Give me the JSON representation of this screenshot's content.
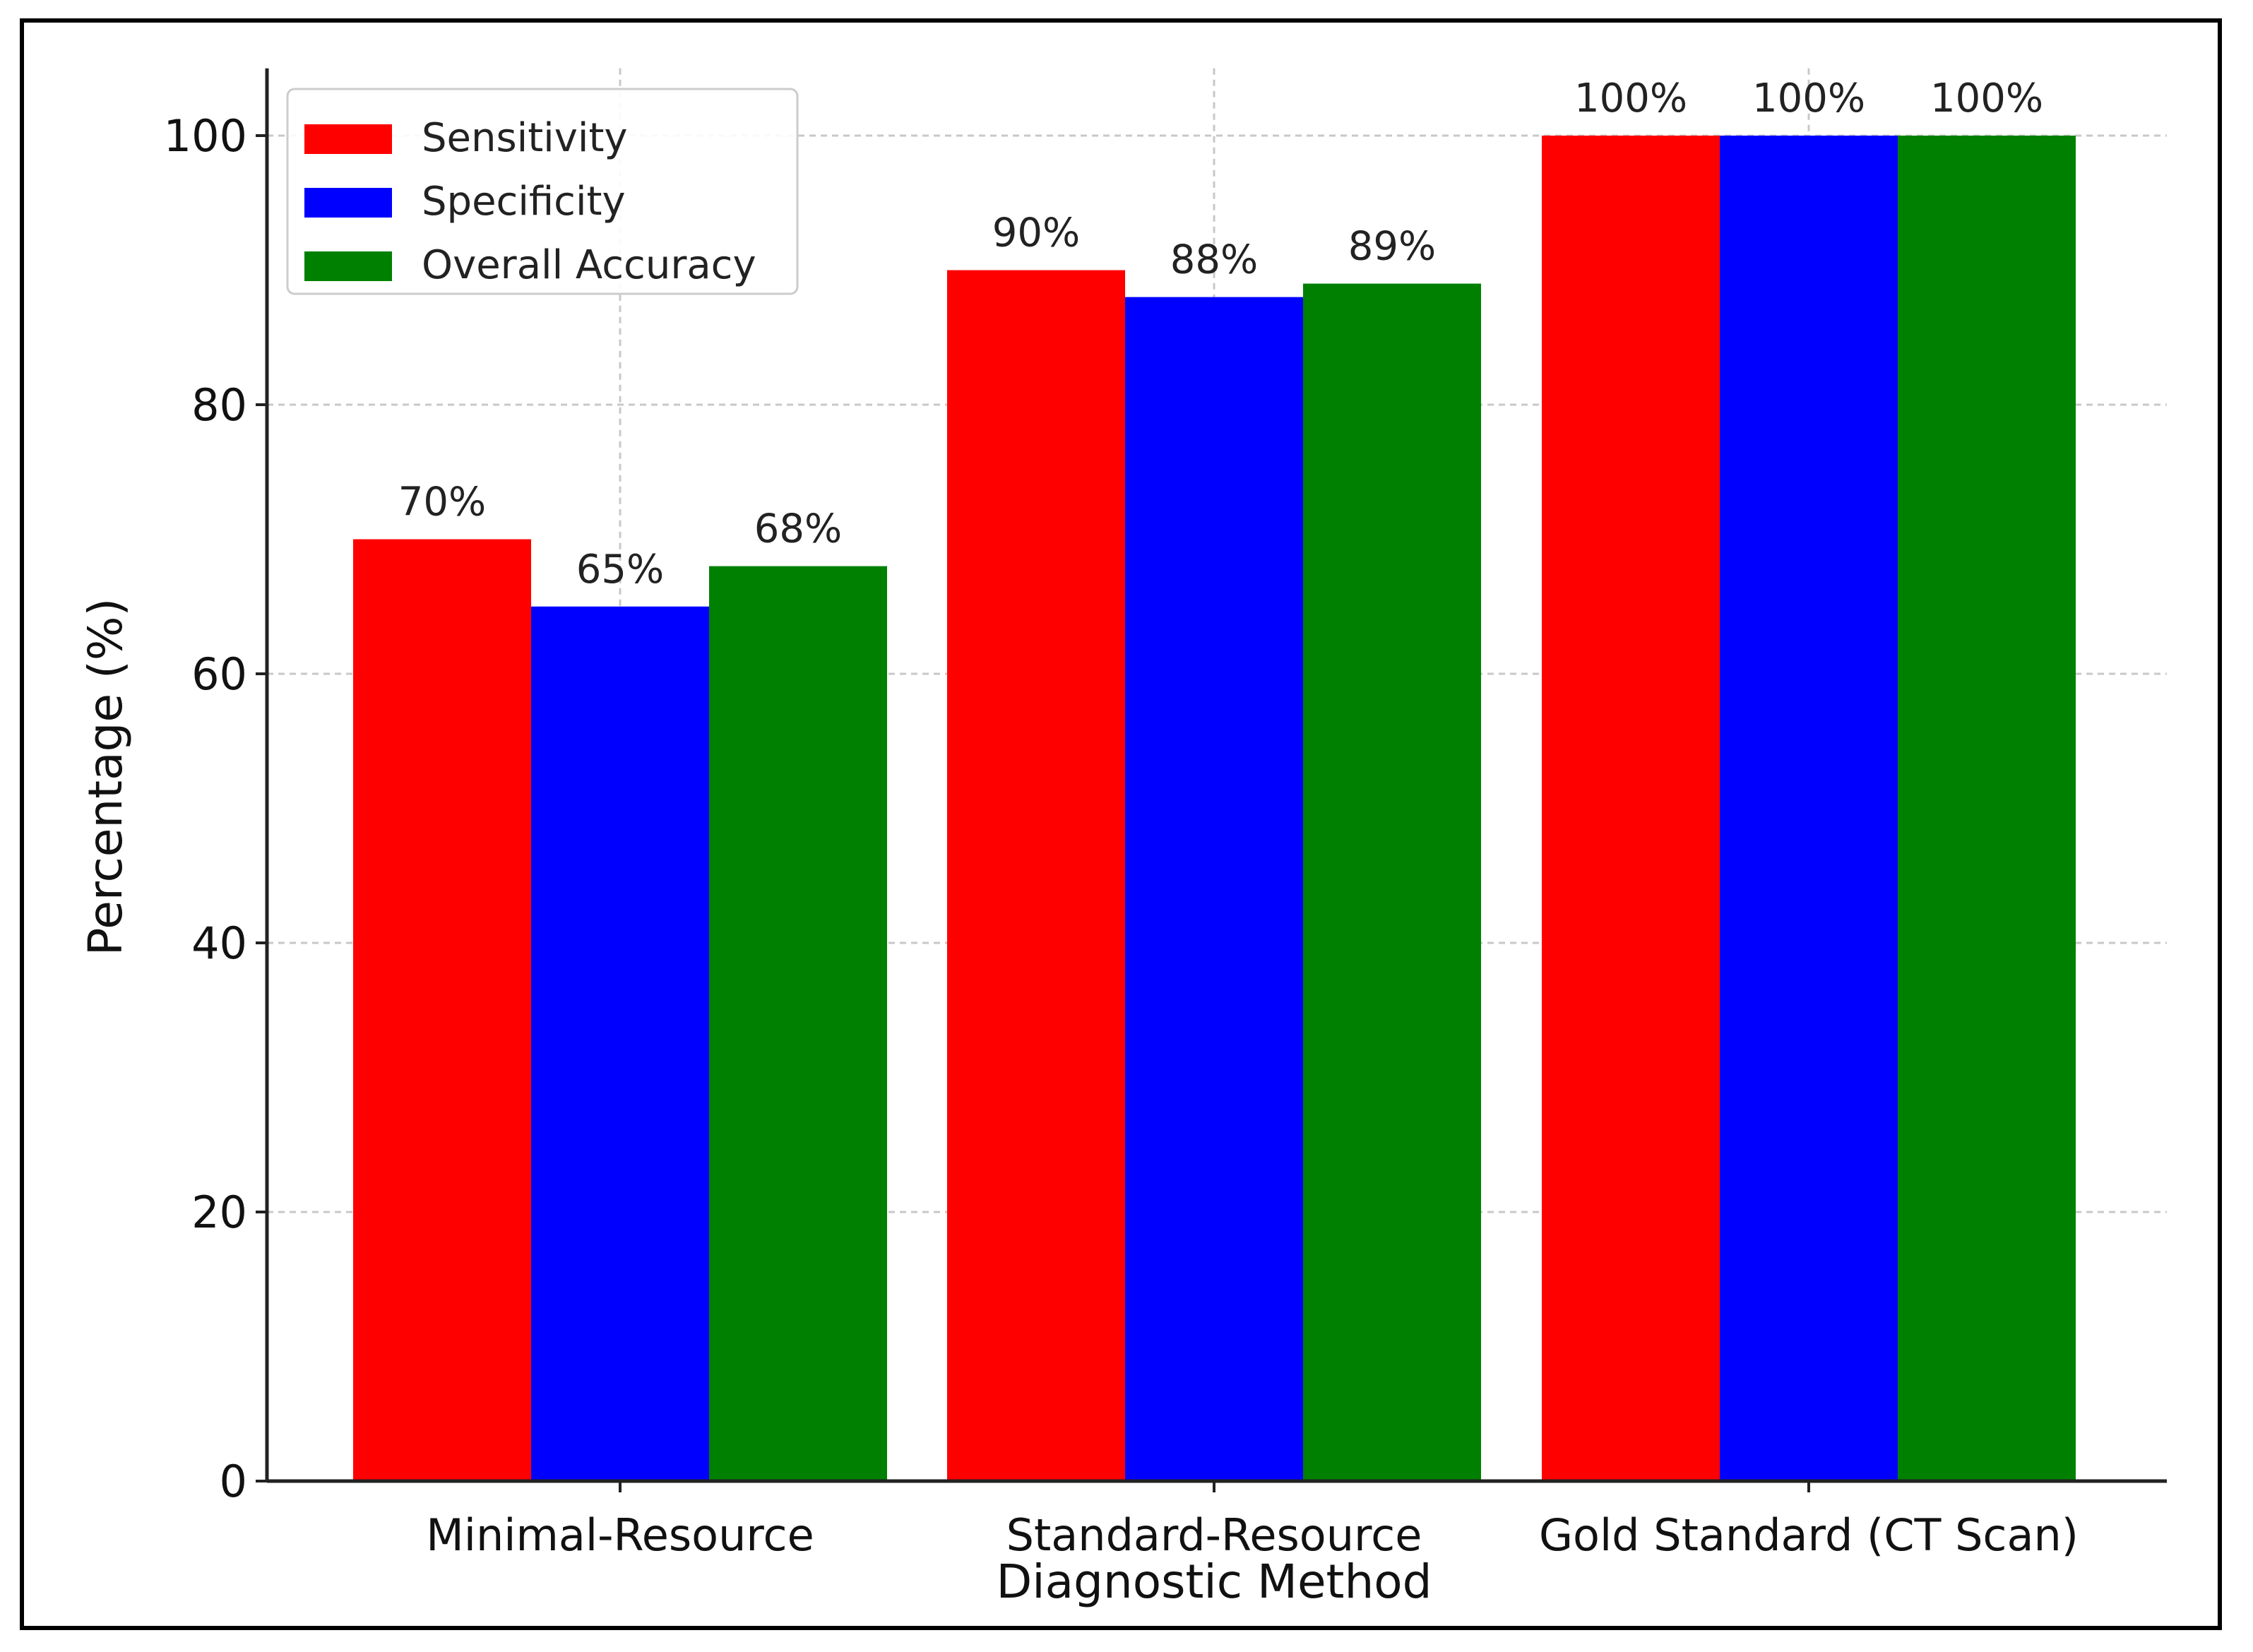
{
  "chart_data": {
    "type": "bar",
    "title": "",
    "xlabel": "Diagnostic Method",
    "ylabel": "Percentage (%)",
    "ylim": [
      0,
      105
    ],
    "yticks": [
      0,
      20,
      40,
      60,
      80,
      100
    ],
    "grid": true,
    "legend_position": "top-left",
    "categories": [
      "Minimal-Resource",
      "Standard-Resource",
      "Gold Standard (CT Scan)"
    ],
    "series": [
      {
        "name": "Sensitivity",
        "color": "#ff0000",
        "values": [
          70,
          90,
          100
        ],
        "labels": [
          "70%",
          "90%",
          "100%"
        ]
      },
      {
        "name": "Specificity",
        "color": "#0000ff",
        "values": [
          65,
          88,
          100
        ],
        "labels": [
          "65%",
          "88%",
          "100%"
        ]
      },
      {
        "name": "Overall Accuracy",
        "color": "#008000",
        "values": [
          68,
          89,
          100
        ],
        "labels": [
          "68%",
          "89%",
          "100%"
        ]
      }
    ]
  }
}
